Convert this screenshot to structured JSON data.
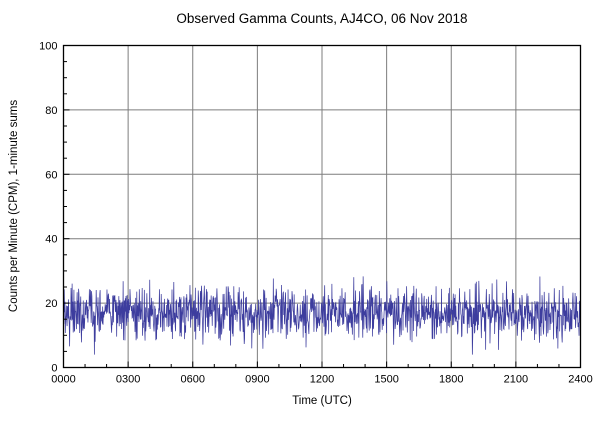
{
  "page": {
    "background": "#ffffff"
  },
  "chart_data": {
    "type": "line",
    "title": "Observed Gamma Counts, AJ4CO, 06 Nov 2018",
    "xlabel": "Time (UTC)",
    "ylabel": "Counts per Minute (CPM), 1-minute sums",
    "x_unit": "HHMM",
    "xlim_minutes": [
      0,
      1440
    ],
    "x_major_ticks": [
      {
        "minute": 0,
        "label": "0000"
      },
      {
        "minute": 180,
        "label": "0300"
      },
      {
        "minute": 360,
        "label": "0600"
      },
      {
        "minute": 540,
        "label": "0900"
      },
      {
        "minute": 720,
        "label": "1200"
      },
      {
        "minute": 900,
        "label": "1500"
      },
      {
        "minute": 1080,
        "label": "1800"
      },
      {
        "minute": 1260,
        "label": "2100"
      },
      {
        "minute": 1440,
        "label": "2400"
      }
    ],
    "x_minor_step_minutes": 60,
    "ylim": [
      0,
      100
    ],
    "y_major_ticks": [
      0,
      20,
      40,
      60,
      80,
      100
    ],
    "y_minor_step": 5,
    "grid": {
      "show": true,
      "color": "#7d7d7d"
    },
    "frame_color": "#000000",
    "series": [
      {
        "name": "Observed gamma counts, 1-minute sums",
        "color": "#3d3d9e",
        "samples": 1440,
        "mean_cpm": 17,
        "std_cpm": 4.2,
        "observed_min_cpm": 4,
        "observed_max_cpm": 31,
        "noise_model": "poisson-like scatter about mean",
        "seed": 20181106
      }
    ]
  }
}
